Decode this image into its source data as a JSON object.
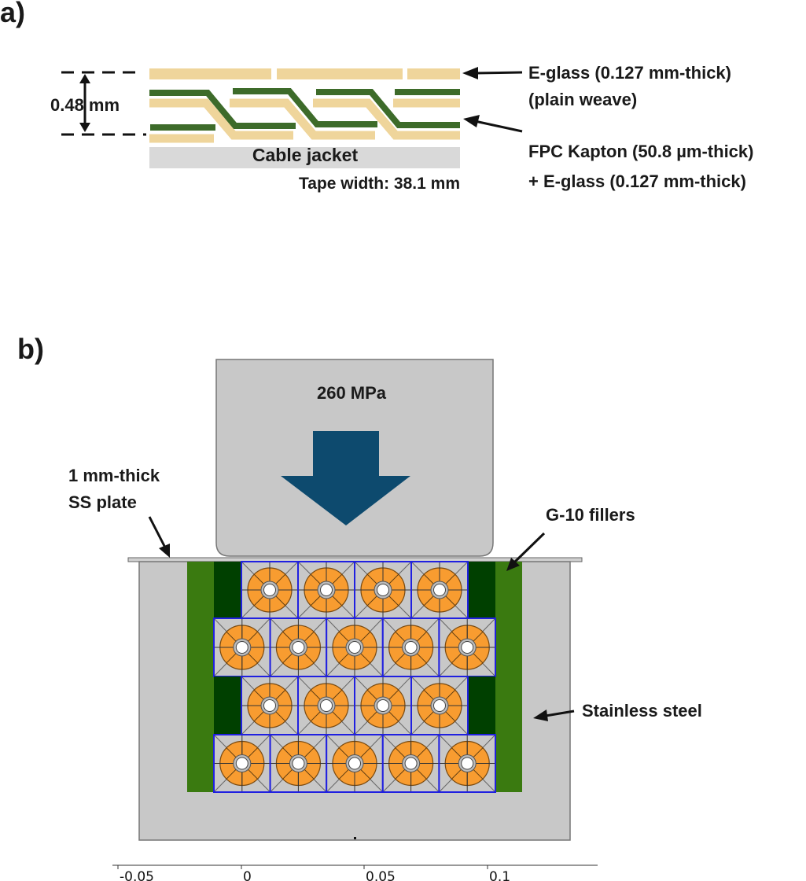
{
  "panel_a": {
    "label": "a)",
    "thickness": "0.48 mm",
    "jacket": "Cable jacket",
    "tape_width": "Tape width: 38.1 mm",
    "eglass_line1": "E-glass (0.127 mm-thick)",
    "eglass_line2": "(plain weave)",
    "kapton_line1": "FPC Kapton (50.8 µm-thick)",
    "kapton_line2": "+ E-glass (0.127 mm-thick)",
    "colors": {
      "eglass": "#efd59b",
      "kapton": "#3d6b2a",
      "jacket": "#d9d9d9"
    }
  },
  "panel_b": {
    "label": "b)",
    "pressure": "260 MPa",
    "plate_line1": "1 mm-thick",
    "plate_line2": "SS plate",
    "fillers": "G-10 fillers",
    "steel": "Stainless steel",
    "rows": [
      4,
      5,
      4,
      5
    ],
    "axis_ticks": [
      "-0.05",
      "0",
      "0.05",
      "0.1"
    ],
    "colors": {
      "steel": "#c8c8c8",
      "arrow": "#0d4a6e",
      "g10_light": "#3a7a10",
      "g10_dark": "#004000",
      "conductor": "#f89c30",
      "cell_border": "#2020e0"
    }
  }
}
